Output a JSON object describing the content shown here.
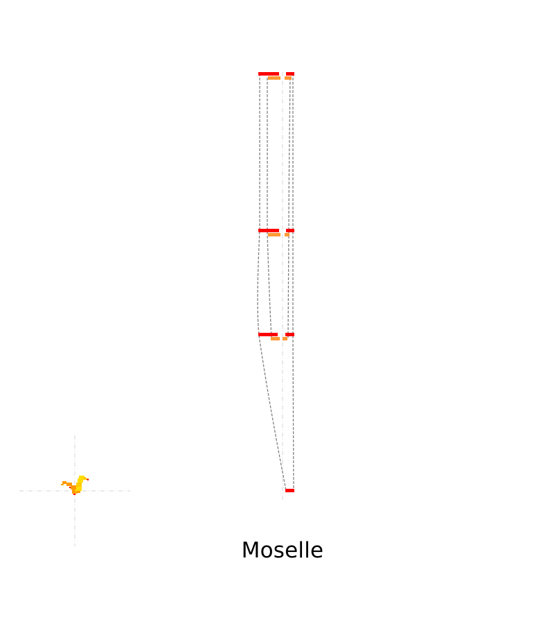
{
  "caption": "Moselle",
  "colors": {
    "background": "#ffffff",
    "outline": "#808080",
    "guide": "#d0d0d0",
    "marker_primary": "#ff0000",
    "marker_secondary": "#ff9933",
    "figure_yellow": "#ffdd00",
    "figure_orange": "#ff9900"
  },
  "icons": {
    "figure": "pixel-sprite-icon"
  }
}
